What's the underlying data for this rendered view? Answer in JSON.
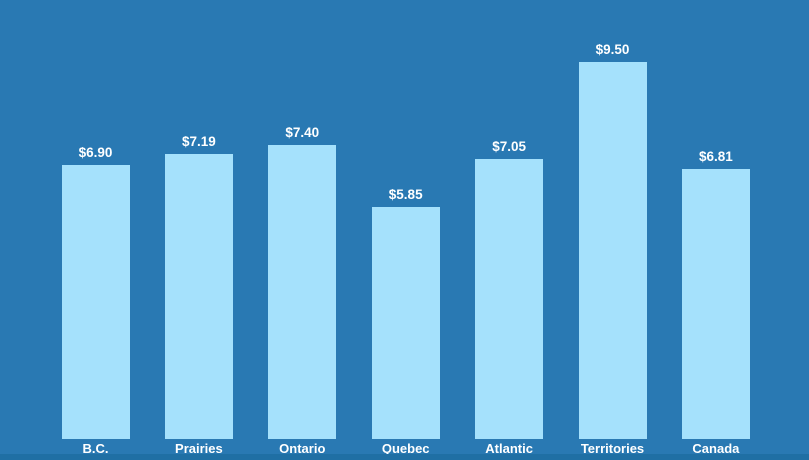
{
  "chart_data": {
    "type": "bar",
    "categories": [
      "B.C.",
      "Prairies",
      "Ontario",
      "Quebec",
      "Atlantic",
      "Territories",
      "Canada"
    ],
    "values": [
      6.9,
      7.19,
      7.4,
      5.85,
      7.05,
      9.5,
      6.81
    ],
    "value_labels": [
      "$6.90",
      "$7.19",
      "$7.40",
      "$5.85",
      "$7.05",
      "$9.50",
      "$6.81"
    ],
    "title": "",
    "xlabel": "",
    "ylabel": "",
    "ylim": [
      0,
      10
    ],
    "grid": false,
    "legend": null,
    "value_label_position": "above-bar",
    "category_label_position": "below-bar"
  },
  "colors": {
    "background": "#2979b3",
    "bar_fill": "#a5e1fc",
    "label_text": "#ffffff",
    "bottom_strip": "#1f6fa4"
  }
}
